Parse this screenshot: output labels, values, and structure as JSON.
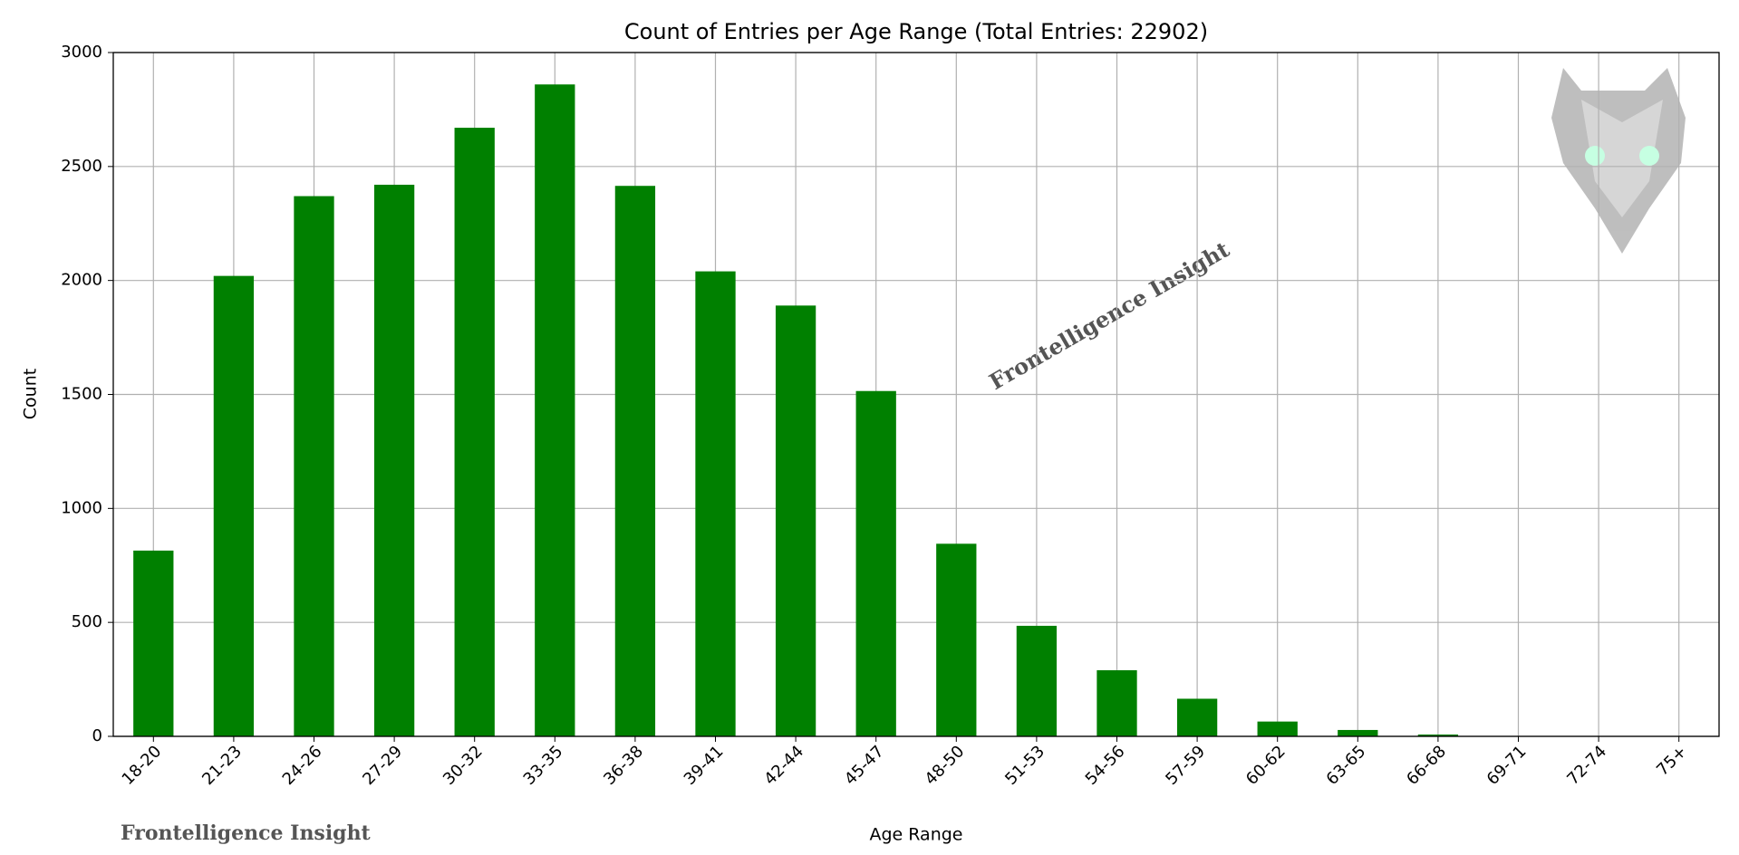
{
  "chart_data": {
    "type": "bar",
    "title": "Count of Entries per Age Range (Total Entries: 22902)",
    "x_label": "Age Range",
    "y_label": "Count",
    "categories": [
      "18-20",
      "21-23",
      "24-26",
      "27-29",
      "30-32",
      "33-35",
      "36-38",
      "39-41",
      "42-44",
      "45-47",
      "48-50",
      "51-53",
      "54-56",
      "57-59",
      "60-62",
      "63-65",
      "66-68",
      "69-71",
      "72-74",
      "75+"
    ],
    "values": [
      815,
      2020,
      2370,
      2420,
      2670,
      2860,
      2415,
      2040,
      1890,
      1515,
      845,
      485,
      290,
      165,
      65,
      28,
      8,
      1,
      0,
      0
    ],
    "color": "#008000",
    "ylim": [
      0,
      3000
    ],
    "yticks": [
      0,
      500,
      1000,
      1500,
      2000,
      2500,
      3000
    ],
    "grid": true,
    "watermarks": [
      "Frontelligence Insight",
      "Frontelligence Insight"
    ]
  }
}
